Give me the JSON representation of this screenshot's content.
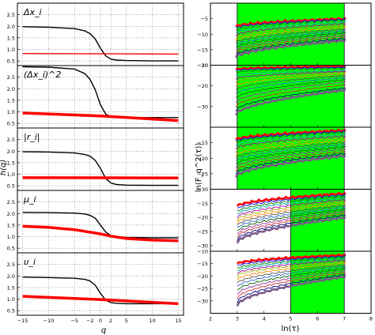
{
  "colors": {
    "black": "#000000",
    "red": "#ff0000",
    "green_band": "#00ff00",
    "grid": "#555555",
    "multi_series": [
      "#000080",
      "#0000ff",
      "#008000",
      "#00aaaa",
      "#aa00aa",
      "#aaaa00",
      "#ff8800",
      "#555555",
      "#3366cc",
      "#006600",
      "#993399",
      "#cc3333"
    ]
  },
  "left_figure": {
    "ylabel": "h(q)",
    "xlabel": "q"
  },
  "right_figure": {
    "ylabel": "ln(F_q^2(τ))",
    "xlabel": "ln(τ)"
  },
  "chart_data": [
    {
      "type": "line",
      "panel_label": "Δx_i",
      "xlim": [
        -16,
        16
      ],
      "ylim": [
        0.3,
        3.0
      ],
      "xticks": [
        -15,
        -10,
        -5,
        -2,
        0,
        2,
        5,
        10,
        15
      ],
      "yticks": [
        0.5,
        1.0,
        1.5,
        2.0,
        2.5
      ],
      "grid": true,
      "series": [
        {
          "color": "black",
          "x": [
            -15,
            -10,
            -5,
            -3,
            -2,
            -1,
            0,
            1,
            2,
            3,
            5,
            10,
            15
          ],
          "y": [
            1.98,
            1.96,
            1.9,
            1.8,
            1.68,
            1.45,
            1.05,
            0.72,
            0.58,
            0.54,
            0.52,
            0.5,
            0.5
          ]
        },
        {
          "color": "red",
          "x": [
            -15,
            15
          ],
          "y": [
            0.82,
            0.8
          ]
        }
      ]
    },
    {
      "type": "line",
      "panel_label": "(Δx_i)^2",
      "xlim": [
        -16,
        16
      ],
      "ylim": [
        0.3,
        3.0
      ],
      "xticks": [
        -15,
        -10,
        -5,
        -2,
        0,
        2,
        5,
        10,
        15
      ],
      "yticks": [
        0.5,
        1.0,
        1.5,
        2.0,
        2.5
      ],
      "grid": true,
      "series": [
        {
          "color": "black",
          "x": [
            -15,
            -10,
            -5,
            -3,
            -2,
            -1,
            0,
            1,
            2,
            3,
            5,
            10,
            15
          ],
          "y": [
            2.95,
            2.93,
            2.85,
            2.65,
            2.4,
            1.95,
            1.3,
            0.9,
            0.78,
            0.76,
            0.75,
            0.75,
            0.75
          ]
        },
        {
          "color": "red",
          "x": [
            -15,
            0,
            15
          ],
          "y": [
            0.95,
            0.82,
            0.62
          ]
        }
      ]
    },
    {
      "type": "line",
      "panel_label": "|r_i|",
      "xlim": [
        -16,
        16
      ],
      "ylim": [
        0.3,
        3.0
      ],
      "xticks": [
        -15,
        -10,
        -5,
        -2,
        0,
        2,
        5,
        10,
        15
      ],
      "yticks": [
        0.5,
        1.0,
        1.5,
        2.0,
        2.5
      ],
      "grid": true,
      "series": [
        {
          "color": "black",
          "x": [
            -15,
            -10,
            -5,
            -3,
            -2,
            -1,
            0,
            1,
            2,
            3,
            5,
            10,
            15
          ],
          "y": [
            1.97,
            1.96,
            1.92,
            1.85,
            1.78,
            1.6,
            1.25,
            0.82,
            0.62,
            0.56,
            0.53,
            0.52,
            0.52
          ]
        },
        {
          "color": "red",
          "x": [
            -15,
            15
          ],
          "y": [
            0.85,
            0.84
          ]
        }
      ]
    },
    {
      "type": "line",
      "panel_label": "μ_i",
      "xlim": [
        -16,
        16
      ],
      "ylim": [
        0.3,
        3.0
      ],
      "xticks": [
        -15,
        -10,
        -5,
        -2,
        0,
        2,
        5,
        10,
        15
      ],
      "yticks": [
        0.5,
        1.0,
        1.5,
        2.0,
        2.5
      ],
      "grid": true,
      "series": [
        {
          "color": "black",
          "x": [
            -15,
            -10,
            -5,
            -3,
            -2,
            -1,
            0,
            1,
            2,
            3,
            5,
            10,
            15
          ],
          "y": [
            2.05,
            2.04,
            2.02,
            1.98,
            1.92,
            1.8,
            1.5,
            1.2,
            1.05,
            1.0,
            0.97,
            0.95,
            0.95
          ]
        },
        {
          "color": "red",
          "x": [
            -15,
            -10,
            -5,
            0,
            2,
            5,
            10,
            15
          ],
          "y": [
            1.45,
            1.4,
            1.3,
            1.12,
            1.02,
            0.92,
            0.85,
            0.82
          ]
        }
      ]
    },
    {
      "type": "line",
      "panel_label": "υ_i",
      "xlim": [
        -16,
        16
      ],
      "ylim": [
        0.3,
        3.0
      ],
      "xticks": [
        -15,
        -10,
        -5,
        -2,
        0,
        2,
        5,
        10,
        15
      ],
      "xticklabels": [
        "-15",
        "-10",
        "-5",
        "-2",
        "0",
        "2",
        "5",
        "10",
        "15"
      ],
      "yticks": [
        0.5,
        1.0,
        1.5,
        2.0,
        2.5
      ],
      "grid": true,
      "series": [
        {
          "color": "black",
          "x": [
            -15,
            -10,
            -5,
            -3,
            -2,
            -1,
            0,
            1,
            2,
            3,
            5,
            10,
            15
          ],
          "y": [
            1.95,
            1.93,
            1.9,
            1.85,
            1.78,
            1.6,
            1.25,
            0.95,
            0.85,
            0.82,
            0.8,
            0.8,
            0.8
          ]
        },
        {
          "color": "red",
          "x": [
            -15,
            0,
            15
          ],
          "y": [
            1.12,
            0.98,
            0.8
          ]
        }
      ]
    },
    {
      "type": "line",
      "xlim": [
        2,
        8
      ],
      "ylim": [
        -20,
        0
      ],
      "yticks": [
        -20,
        -15,
        -10,
        -5
      ],
      "xticks": [
        2,
        3,
        4,
        5,
        6,
        7,
        8
      ],
      "highlight_x": [
        3,
        7
      ],
      "series_from_x": 2.95,
      "series_to_x": 7.05,
      "series_start": [
        -7.5,
        -8,
        -8.8,
        -9.6,
        -10.4,
        -11.2,
        -12,
        -12.8,
        -13.6,
        -14.4,
        -15.2,
        -16,
        -16.8,
        -17.5
      ],
      "series_end": [
        -5,
        -5.2,
        -5.5,
        -6,
        -6.6,
        -7.2,
        -7.8,
        -8.4,
        -9,
        -9.6,
        -10.2,
        -10.8,
        -11.4,
        -12
      ]
    },
    {
      "type": "line",
      "xlim": [
        2,
        8
      ],
      "ylim": [
        -40,
        -10
      ],
      "yticks": [
        -40,
        -30,
        -20,
        -10
      ],
      "yticklabels": [
        "",
        "-30",
        "-20",
        "-10"
      ],
      "xticks": [
        2,
        3,
        4,
        5,
        6,
        7,
        8
      ],
      "highlight_x": [
        3,
        7
      ],
      "series_from_x": 2.95,
      "series_to_x": 7.05,
      "series_start": [
        -12,
        -12.5,
        -13.5,
        -15,
        -16.5,
        -18,
        -20,
        -22,
        -24,
        -26,
        -28,
        -30,
        -32,
        -34
      ],
      "series_end": [
        -10.5,
        -11,
        -11.5,
        -12.5,
        -13,
        -13.5,
        -14.2,
        -15,
        -16,
        -17,
        -18,
        -19.5,
        -21,
        -22
      ]
    },
    {
      "type": "line",
      "xlim": [
        2,
        8
      ],
      "ylim": [
        -30,
        -10
      ],
      "yticks": [
        -30,
        -25,
        -20,
        -15,
        -10
      ],
      "yticklabels": [
        "-30",
        "-25",
        "-20",
        "-15",
        ""
      ],
      "xticks": [
        2,
        3,
        4,
        5,
        6,
        7,
        8
      ],
      "highlight_x": [
        3,
        7
      ],
      "series_from_x": 2.95,
      "series_to_x": 7.05,
      "series_start": [
        -14,
        -14.5,
        -15,
        -15.8,
        -16.8,
        -17.8,
        -19,
        -20,
        -21,
        -22,
        -23,
        -24,
        -25,
        -26
      ],
      "series_end": [
        -11,
        -11.3,
        -11.7,
        -12.3,
        -12.9,
        -13.5,
        -14.2,
        -14.9,
        -15.6,
        -16.3,
        -17,
        -17.8,
        -18.5,
        -19.2
      ]
    },
    {
      "type": "line",
      "xlim": [
        2,
        8
      ],
      "ylim": [
        -32,
        -10
      ],
      "yticks": [
        -30,
        -25,
        -20,
        -15,
        -10
      ],
      "yticklabels": [
        "-30",
        "-25",
        "-20",
        "-15",
        ""
      ],
      "xticks": [
        2,
        3,
        4,
        5,
        6,
        7,
        8
      ],
      "highlight_x": [
        5,
        7
      ],
      "series_from_x": 3.0,
      "series_to_x": 7.05,
      "series_start": [
        -16,
        -17,
        -18,
        -19,
        -20,
        -21,
        -22,
        -23,
        -24,
        -25,
        -26,
        -27,
        -28,
        -29
      ],
      "series_end": [
        -11.5,
        -12,
        -12.5,
        -13,
        -13.7,
        -14.3,
        -15,
        -15.7,
        -16.4,
        -17.1,
        -17.8,
        -18.5,
        -19.2,
        -20
      ]
    },
    {
      "type": "line",
      "xlim": [
        2,
        8
      ],
      "ylim": [
        -35,
        -10
      ],
      "yticks": [
        -35,
        -30,
        -25,
        -20,
        -15,
        -10
      ],
      "yticklabels": [
        "",
        "-30",
        "-25",
        "-20",
        "-15",
        "-10"
      ],
      "xticks": [
        2,
        3,
        4,
        5,
        6,
        7,
        8
      ],
      "xticklabels": [
        "2",
        "3",
        "4",
        "5",
        "6",
        "7",
        "8"
      ],
      "highlight_x": [
        5,
        7
      ],
      "series_from_x": 3.0,
      "series_to_x": 7.05,
      "series_start": [
        -15,
        -16,
        -17,
        -18,
        -19,
        -20,
        -21.5,
        -23,
        -24.5,
        -26,
        -27.5,
        -29,
        -30.5,
        -32
      ],
      "series_end": [
        -11.5,
        -12,
        -12.5,
        -13,
        -13.6,
        -14.2,
        -14.8,
        -15.5,
        -16.2,
        -17,
        -17.8,
        -18.6,
        -19.4,
        -20.2
      ]
    }
  ]
}
